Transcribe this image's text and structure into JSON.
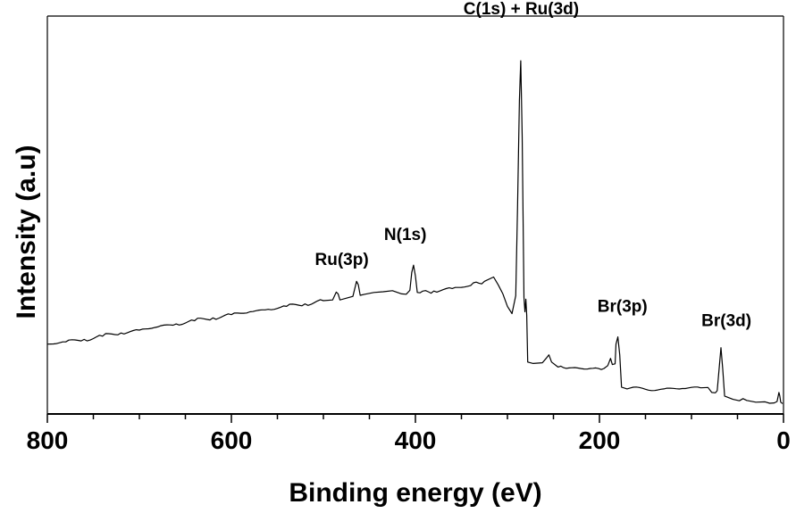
{
  "chart_data": {
    "type": "line",
    "title": "",
    "xlabel": "Binding energy (eV)",
    "ylabel": "Intensity (a.u)",
    "xlim": [
      800,
      0
    ],
    "x_reversed": true,
    "ylim": [
      0,
      100
    ],
    "y_ticks_shown": false,
    "grid": false,
    "legend": "none",
    "x_ticks": [
      800,
      600,
      400,
      200,
      0
    ],
    "x_tick_labels": [
      "800",
      "600",
      "400",
      "200",
      "0"
    ],
    "series": [
      {
        "color": "#000000",
        "points": [
          [
            800,
            17
          ],
          [
            780,
            17.6
          ],
          [
            760,
            18.3
          ],
          [
            740,
            19.2
          ],
          [
            720,
            20.1
          ],
          [
            700,
            20.9
          ],
          [
            680,
            21.8
          ],
          [
            660,
            22.6
          ],
          [
            640,
            23.5
          ],
          [
            620,
            24.3
          ],
          [
            600,
            25.2
          ],
          [
            580,
            26.0
          ],
          [
            560,
            26.7
          ],
          [
            540,
            27.5
          ],
          [
            520,
            28.2
          ],
          [
            500,
            29.1
          ],
          [
            490,
            29.3
          ],
          [
            486,
            31.5
          ],
          [
            484,
            31.0
          ],
          [
            482,
            29.3
          ],
          [
            475,
            29.8
          ],
          [
            468,
            30.3
          ],
          [
            464,
            34.5
          ],
          [
            462,
            33.5
          ],
          [
            460,
            30.6
          ],
          [
            455,
            30.9
          ],
          [
            445,
            31.4
          ],
          [
            435,
            31.6
          ],
          [
            425,
            31.9
          ],
          [
            415,
            31.0
          ],
          [
            410,
            30.9
          ],
          [
            406,
            32.0
          ],
          [
            404,
            37.0
          ],
          [
            402,
            39.0
          ],
          [
            400,
            36.0
          ],
          [
            398,
            31.4
          ],
          [
            395,
            31.3
          ],
          [
            380,
            31.8
          ],
          [
            360,
            32.5
          ],
          [
            340,
            33.3
          ],
          [
            325,
            34.5
          ],
          [
            315,
            35.7
          ],
          [
            310,
            33.5
          ],
          [
            305,
            31.0
          ],
          [
            300,
            27.5
          ],
          [
            295,
            25.5
          ],
          [
            291,
            30.5
          ],
          [
            289,
            55.0
          ],
          [
            287,
            85.0
          ],
          [
            285.5,
            96.0
          ],
          [
            284,
            75.0
          ],
          [
            282,
            30.0
          ],
          [
            281,
            26.0
          ],
          [
            280,
            29.5
          ],
          [
            279,
            25.0
          ],
          [
            278,
            12.0
          ],
          [
            272,
            11.6
          ],
          [
            262,
            11.8
          ],
          [
            258,
            13.0
          ],
          [
            255,
            14.0
          ],
          [
            252,
            12.0
          ],
          [
            245,
            10.6
          ],
          [
            230,
            10.4
          ],
          [
            210,
            10.2
          ],
          [
            195,
            10.2
          ],
          [
            191,
            11.0
          ],
          [
            188,
            13.0
          ],
          [
            186,
            11.3
          ],
          [
            183,
            11.5
          ],
          [
            182,
            17.0
          ],
          [
            180,
            19.0
          ],
          [
            178,
            14.0
          ],
          [
            176,
            5.0
          ],
          [
            170,
            4.5
          ],
          [
            150,
            4.4
          ],
          [
            130,
            4.5
          ],
          [
            110,
            4.6
          ],
          [
            90,
            4.8
          ],
          [
            82,
            4.9
          ],
          [
            78,
            3.5
          ],
          [
            74,
            3.4
          ],
          [
            72,
            4.0
          ],
          [
            70,
            10.0
          ],
          [
            68,
            16.0
          ],
          [
            66,
            10.0
          ],
          [
            64,
            2.5
          ],
          [
            55,
            1.6
          ],
          [
            48,
            1.2
          ],
          [
            44,
            1.8
          ],
          [
            40,
            1.3
          ],
          [
            30,
            0.8
          ],
          [
            20,
            0.9
          ],
          [
            15,
            0.5
          ],
          [
            10,
            0.6
          ],
          [
            7,
            1.0
          ],
          [
            5,
            3.5
          ],
          [
            4,
            2.5
          ],
          [
            3,
            0.8
          ],
          [
            1,
            0.4
          ]
        ]
      }
    ],
    "annotations": [
      {
        "text": "C(1s) + Ru(3d)",
        "x": 285,
        "y": 109
      },
      {
        "text": "N(1s)",
        "x": 411,
        "y": 46
      },
      {
        "text": "Ru(3p)",
        "x": 480,
        "y": 39
      },
      {
        "text": "Br(3p)",
        "x": 175,
        "y": 26
      },
      {
        "text": "Br(3d)",
        "x": 62,
        "y": 22
      }
    ]
  }
}
